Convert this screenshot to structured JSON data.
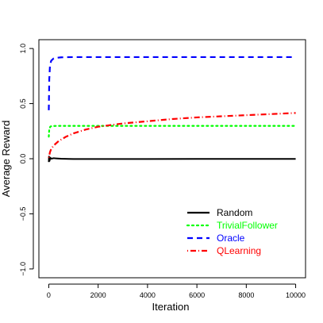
{
  "chart_data": {
    "type": "line",
    "title": "",
    "xlabel": "Iteration",
    "ylabel": "Average Reward",
    "xlim": [
      -400,
      10400
    ],
    "ylim": [
      -1.08,
      1.08
    ],
    "xticks": [
      0,
      2000,
      4000,
      6000,
      8000,
      10000
    ],
    "xtick_labels": [
      "0",
      "2000",
      "4000",
      "6000",
      "8000",
      "10000"
    ],
    "yticks": [
      -1.0,
      -0.5,
      0.0,
      0.5,
      1.0
    ],
    "ytick_labels": [
      "−1.0",
      "−0.5",
      "0.0",
      "0.5",
      "1.0"
    ],
    "grid": false,
    "legend_position": "bottom-right",
    "series": [
      {
        "name": "Random",
        "color": "#000000",
        "dash": "solid",
        "x": [
          1,
          10,
          30,
          60,
          100,
          200,
          300,
          500,
          800,
          1000,
          2000,
          4000,
          6000,
          8000,
          10000
        ],
        "y": [
          -0.03,
          0.02,
          -0.02,
          0.01,
          0.0,
          0.005,
          0.003,
          0.0,
          -0.002,
          -0.003,
          -0.003,
          -0.003,
          -0.002,
          -0.002,
          -0.002
        ]
      },
      {
        "name": "TrivialFollower",
        "color": "#00ff00",
        "dash": "dotted",
        "x": [
          1,
          20,
          60,
          100,
          200,
          500,
          1000,
          2000,
          4000,
          6000,
          8000,
          10000
        ],
        "y": [
          0.2,
          0.27,
          0.29,
          0.295,
          0.297,
          0.298,
          0.298,
          0.298,
          0.298,
          0.298,
          0.298,
          0.298
        ],
        "y_text_color": "#00ff00"
      },
      {
        "name": "Oracle",
        "color": "#0000ff",
        "dash": "dashed",
        "x": [
          1,
          20,
          50,
          100,
          200,
          300,
          500,
          1000,
          2000,
          4000,
          6000,
          8000,
          10000
        ],
        "y": [
          0.44,
          0.72,
          0.85,
          0.89,
          0.91,
          0.915,
          0.92,
          0.922,
          0.922,
          0.922,
          0.922,
          0.922,
          0.922
        ]
      },
      {
        "name": "QLearning",
        "color": "#ff0000",
        "dash": "dotdash",
        "x": [
          1,
          20,
          50,
          100,
          200,
          400,
          700,
          1000,
          1500,
          2000,
          3000,
          4000,
          5000,
          6000,
          7000,
          8000,
          9000,
          10000
        ],
        "y": [
          0.01,
          0.03,
          0.06,
          0.09,
          0.12,
          0.16,
          0.2,
          0.23,
          0.265,
          0.29,
          0.32,
          0.34,
          0.36,
          0.375,
          0.385,
          0.395,
          0.405,
          0.415
        ]
      }
    ]
  }
}
